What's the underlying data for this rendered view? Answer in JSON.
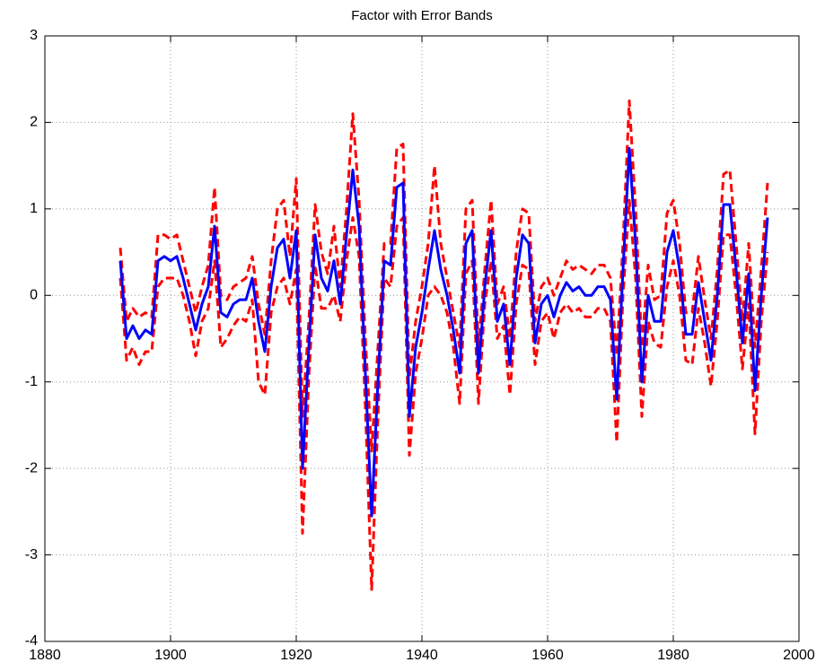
{
  "chart_data": {
    "type": "line",
    "title": "Factor with Error Bands",
    "x": [
      1892,
      1893,
      1894,
      1895,
      1896,
      1897,
      1898,
      1899,
      1900,
      1901,
      1902,
      1903,
      1904,
      1905,
      1906,
      1907,
      1908,
      1909,
      1910,
      1911,
      1912,
      1913,
      1914,
      1915,
      1916,
      1917,
      1918,
      1919,
      1920,
      1921,
      1922,
      1923,
      1924,
      1925,
      1926,
      1927,
      1928,
      1929,
      1930,
      1931,
      1932,
      1933,
      1934,
      1935,
      1936,
      1937,
      1938,
      1939,
      1940,
      1941,
      1942,
      1943,
      1944,
      1945,
      1946,
      1947,
      1948,
      1949,
      1950,
      1951,
      1952,
      1953,
      1954,
      1955,
      1956,
      1957,
      1958,
      1959,
      1960,
      1961,
      1962,
      1963,
      1964,
      1965,
      1966,
      1967,
      1968,
      1969,
      1970,
      1971,
      1972,
      1973,
      1974,
      1975,
      1976,
      1977,
      1978,
      1979,
      1980,
      1981,
      1982,
      1983,
      1984,
      1985,
      1986,
      1987,
      1988,
      1989,
      1990,
      1991,
      1992,
      1993,
      1994,
      1995
    ],
    "series": [
      {
        "color": "#0000ff",
        "linestyle": "solid",
        "values": [
          0.4,
          -0.5,
          -0.35,
          -0.5,
          -0.4,
          -0.45,
          0.4,
          0.45,
          0.4,
          0.45,
          0.2,
          -0.1,
          -0.4,
          -0.1,
          0.1,
          0.8,
          -0.2,
          -0.25,
          -0.1,
          -0.05,
          -0.05,
          0.2,
          -0.3,
          -0.65,
          0.1,
          0.55,
          0.65,
          0.2,
          0.75,
          -2.0,
          -0.6,
          0.7,
          0.2,
          0.05,
          0.4,
          -0.1,
          0.7,
          1.45,
          0.8,
          -0.9,
          -2.55,
          -1.0,
          0.4,
          0.35,
          1.25,
          1.3,
          -1.4,
          -0.6,
          -0.2,
          0.3,
          0.75,
          0.3,
          0.0,
          -0.4,
          -0.9,
          0.6,
          0.75,
          -0.9,
          0.1,
          0.75,
          -0.3,
          -0.1,
          -0.8,
          0.2,
          0.7,
          0.6,
          -0.55,
          -0.1,
          0.0,
          -0.25,
          0.0,
          0.15,
          0.05,
          0.1,
          0.0,
          0.0,
          0.1,
          0.1,
          -0.05,
          -1.2,
          0.3,
          1.7,
          0.6,
          -1.0,
          0.0,
          -0.3,
          -0.3,
          0.5,
          0.75,
          0.3,
          -0.45,
          -0.45,
          0.15,
          -0.3,
          -0.75,
          0.0,
          1.05,
          1.05,
          0.3,
          -0.55,
          0.25,
          -1.1,
          0.0,
          0.9
        ]
      },
      {
        "color": "#ff0000",
        "linestyle": "dashed",
        "values": [
          0.55,
          -0.3,
          -0.15,
          -0.25,
          -0.2,
          -0.25,
          0.7,
          0.7,
          0.65,
          0.7,
          0.4,
          0.1,
          -0.2,
          0.1,
          0.35,
          1.25,
          0.0,
          -0.05,
          0.1,
          0.15,
          0.2,
          0.45,
          -0.1,
          -0.45,
          0.4,
          1.0,
          1.1,
          0.45,
          1.35,
          -1.4,
          -0.3,
          1.05,
          0.5,
          0.25,
          0.8,
          0.1,
          1.0,
          2.1,
          1.1,
          -0.5,
          -1.8,
          -0.6,
          0.6,
          0.6,
          1.7,
          1.75,
          -0.95,
          -0.3,
          0.1,
          0.6,
          1.5,
          0.6,
          0.2,
          -0.2,
          -0.6,
          1.0,
          1.1,
          -0.6,
          0.3,
          1.1,
          -0.1,
          0.1,
          -0.5,
          0.5,
          1.0,
          0.95,
          -0.3,
          0.1,
          0.2,
          0.0,
          0.2,
          0.4,
          0.3,
          0.35,
          0.3,
          0.25,
          0.35,
          0.35,
          0.2,
          -0.7,
          0.6,
          2.25,
          1.0,
          -0.6,
          0.35,
          -0.05,
          0.0,
          0.95,
          1.1,
          0.6,
          -0.2,
          -0.2,
          0.45,
          -0.05,
          -0.5,
          0.3,
          1.4,
          1.45,
          0.6,
          -0.3,
          0.6,
          -0.6,
          0.3,
          1.3
        ]
      },
      {
        "color": "#ff0000",
        "linestyle": "dashed",
        "values": [
          0.2,
          -0.75,
          -0.6,
          -0.8,
          -0.65,
          -0.65,
          0.1,
          0.2,
          0.2,
          0.2,
          0.0,
          -0.3,
          -0.7,
          -0.3,
          -0.15,
          0.4,
          -0.6,
          -0.5,
          -0.35,
          -0.25,
          -0.3,
          -0.05,
          -1.0,
          -1.15,
          -0.2,
          0.1,
          0.2,
          -0.1,
          0.3,
          -2.75,
          -0.95,
          0.35,
          -0.15,
          -0.15,
          0.0,
          -0.3,
          0.4,
          0.9,
          0.45,
          -1.3,
          -3.4,
          -1.4,
          0.2,
          0.1,
          0.8,
          0.9,
          -1.85,
          -0.9,
          -0.5,
          0.0,
          0.1,
          0.0,
          -0.2,
          -0.6,
          -1.25,
          0.25,
          0.4,
          -1.25,
          -0.1,
          0.4,
          -0.5,
          -0.35,
          -1.15,
          -0.1,
          0.35,
          0.3,
          -0.8,
          -0.3,
          -0.2,
          -0.5,
          -0.2,
          -0.1,
          -0.2,
          -0.15,
          -0.25,
          -0.25,
          -0.15,
          -0.15,
          -0.3,
          -1.7,
          0.0,
          1.1,
          0.2,
          -1.4,
          -0.3,
          -0.55,
          -0.6,
          0.1,
          0.4,
          0.0,
          -0.75,
          -0.8,
          -0.15,
          -0.55,
          -1.05,
          -0.3,
          0.7,
          0.7,
          0.0,
          -0.85,
          -0.1,
          -1.6,
          -0.3,
          0.5
        ]
      }
    ],
    "xlim": [
      1880,
      2000
    ],
    "xticks": [
      1880,
      1900,
      1920,
      1940,
      1960,
      1980,
      2000
    ],
    "ylim": [
      -4,
      3
    ],
    "yticks": [
      -4,
      -3,
      -2,
      -1,
      0,
      1,
      2,
      3
    ],
    "grid": true
  }
}
